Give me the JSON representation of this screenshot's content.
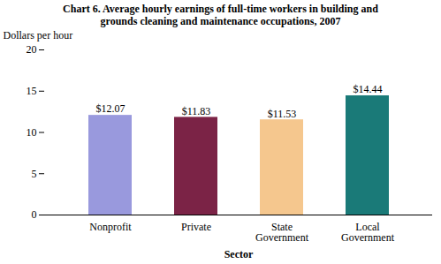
{
  "chart_data": {
    "type": "bar",
    "title": "Chart 6. Average hourly earnings of full-time workers in building and\ngrounds cleaning and maintenance occupations, 2007",
    "xlabel": "Sector",
    "ylabel": "Dollars per hour",
    "categories": [
      "Nonprofit",
      "Private",
      "State\nGovernment",
      "Local\nGovernment"
    ],
    "values": [
      12.07,
      11.83,
      11.53,
      14.44
    ],
    "value_labels": [
      "$12.07",
      "$11.83",
      "$11.53",
      "$14.44"
    ],
    "colors": [
      "#9999dd",
      "#7b2346",
      "#f5c78e",
      "#1a7a78"
    ],
    "data_labels": true,
    "ylim": [
      0,
      20
    ],
    "yticks": [
      0,
      5,
      10,
      15,
      20
    ]
  }
}
